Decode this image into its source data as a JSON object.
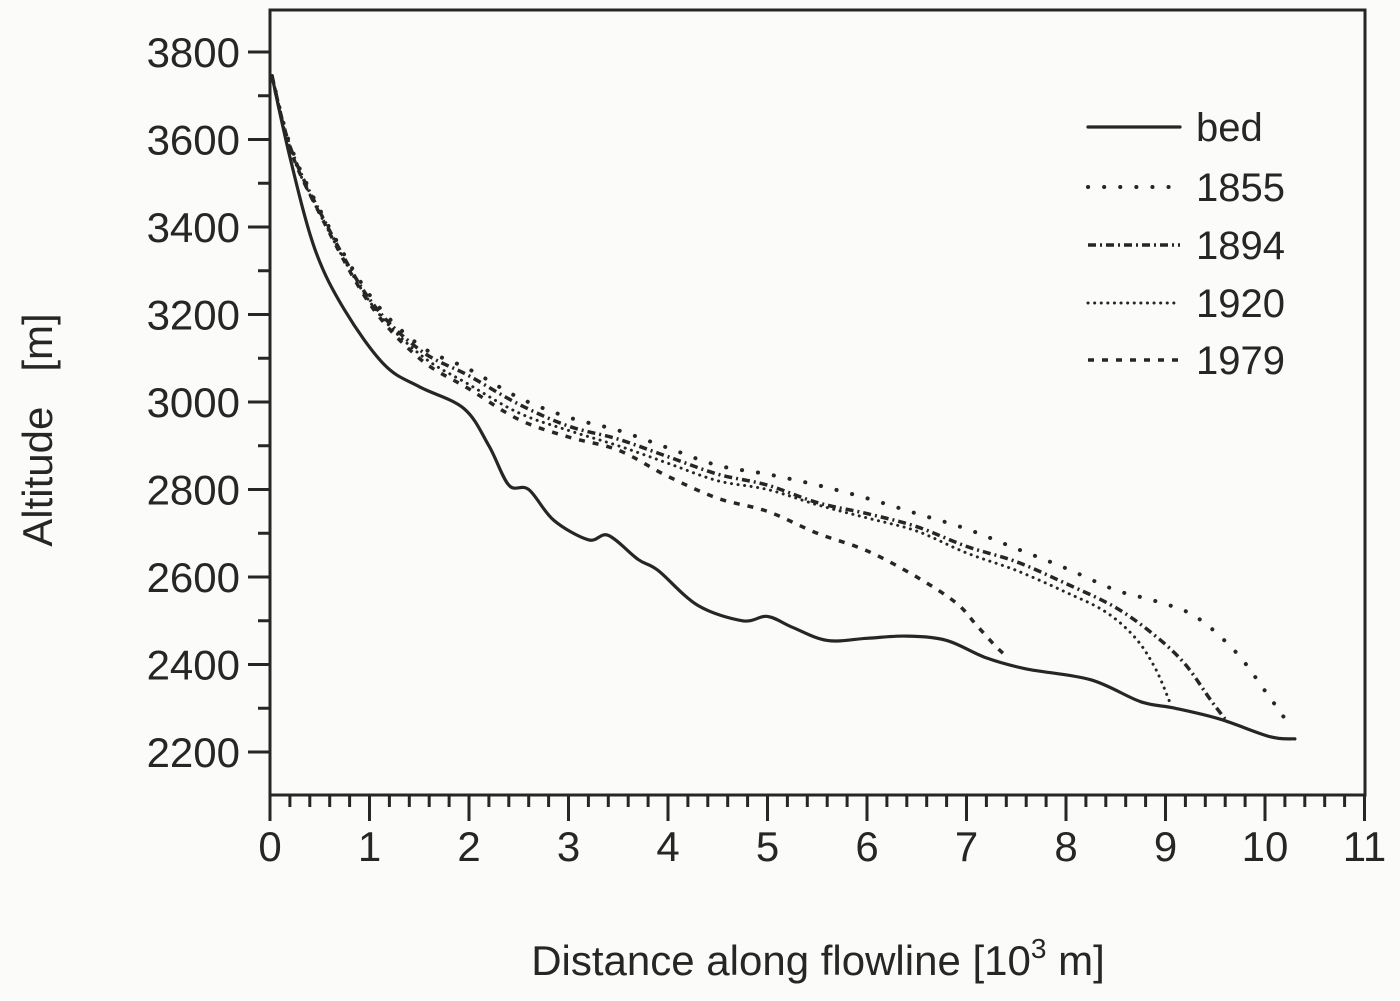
{
  "chart_data": {
    "type": "line",
    "title": "",
    "xlabel": "Distance along flowline [10³ m]",
    "xlabel_parts": {
      "main": "Distance along flowline [10",
      "sup": "3",
      "tail": " m]"
    },
    "ylabel": "Altitude   [m]",
    "xlim": [
      0,
      11
    ],
    "ylim": [
      2100,
      3880
    ],
    "x_ticks": [
      0,
      1,
      2,
      3,
      4,
      5,
      6,
      7,
      8,
      9,
      10,
      11
    ],
    "x_tick_labels": [
      "0",
      "1",
      "2",
      "3",
      "4",
      "5",
      "6",
      "7",
      "8",
      "9",
      "10",
      "11"
    ],
    "x_minor_step": 0.2,
    "y_ticks": [
      2200,
      2400,
      2600,
      2800,
      3000,
      3200,
      3400,
      3600,
      3800
    ],
    "y_tick_labels": [
      "2200",
      "2400",
      "2600",
      "2800",
      "3000",
      "3200",
      "3400",
      "3600",
      "3800"
    ],
    "y_minor_step": 100,
    "grid": false,
    "legend_position": "upper right",
    "series": [
      {
        "name": "bed",
        "style": "solid",
        "x": [
          0.02,
          0.2,
          0.45,
          0.75,
          1.15,
          1.5,
          1.95,
          2.2,
          2.4,
          2.6,
          2.85,
          3.2,
          3.4,
          3.7,
          3.9,
          4.3,
          4.75,
          5.0,
          5.25,
          5.6,
          6.0,
          6.4,
          6.8,
          7.2,
          7.6,
          8.25,
          8.75,
          9.1,
          9.55,
          10.05,
          10.3
        ],
        "values": [
          3745,
          3560,
          3350,
          3210,
          3085,
          3035,
          2985,
          2900,
          2810,
          2800,
          2730,
          2685,
          2695,
          2640,
          2615,
          2535,
          2500,
          2510,
          2485,
          2455,
          2460,
          2465,
          2455,
          2415,
          2390,
          2365,
          2315,
          2300,
          2275,
          2235,
          2230
        ]
      },
      {
        "name": "1855",
        "style": "dotted-sparse",
        "x": [
          0.02,
          0.2,
          0.5,
          1.0,
          1.5,
          2.0,
          2.5,
          3.0,
          3.5,
          4.0,
          4.5,
          5.0,
          5.5,
          6.0,
          6.5,
          7.0,
          7.5,
          8.0,
          8.5,
          8.9,
          9.3,
          9.7,
          10.0,
          10.25
        ],
        "values": [
          3745,
          3590,
          3440,
          3245,
          3130,
          3075,
          3010,
          2965,
          2935,
          2895,
          2855,
          2835,
          2810,
          2780,
          2745,
          2710,
          2665,
          2620,
          2570,
          2545,
          2510,
          2430,
          2340,
          2260
        ]
      },
      {
        "name": "1894",
        "style": "dash-dot",
        "x": [
          0.02,
          0.2,
          0.5,
          1.0,
          1.5,
          2.0,
          2.5,
          3.0,
          3.5,
          4.0,
          4.5,
          5.0,
          5.5,
          6.0,
          6.5,
          7.0,
          7.5,
          8.0,
          8.5,
          8.9,
          9.2,
          9.45,
          9.6
        ],
        "values": [
          3745,
          3585,
          3435,
          3235,
          3120,
          3060,
          2995,
          2945,
          2915,
          2875,
          2835,
          2810,
          2770,
          2745,
          2715,
          2670,
          2635,
          2585,
          2530,
          2465,
          2400,
          2320,
          2275
        ]
      },
      {
        "name": "1920",
        "style": "dotted-dense",
        "x": [
          0.02,
          0.2,
          0.5,
          1.0,
          1.5,
          2.0,
          2.5,
          3.0,
          3.5,
          4.0,
          4.5,
          5.0,
          5.5,
          6.0,
          6.5,
          7.0,
          7.5,
          8.0,
          8.4,
          8.7,
          8.9,
          9.05
        ],
        "values": [
          3745,
          3580,
          3430,
          3230,
          3110,
          3040,
          2975,
          2935,
          2900,
          2860,
          2820,
          2800,
          2765,
          2735,
          2705,
          2655,
          2615,
          2565,
          2520,
          2460,
          2390,
          2310
        ]
      },
      {
        "name": "1979",
        "style": "dashed",
        "x": [
          0.02,
          0.2,
          0.5,
          1.0,
          1.5,
          2.0,
          2.5,
          3.0,
          3.5,
          4.0,
          4.5,
          5.0,
          5.5,
          6.0,
          6.5,
          6.9,
          7.1,
          7.3,
          7.4
        ],
        "values": [
          3745,
          3580,
          3430,
          3225,
          3100,
          3030,
          2960,
          2920,
          2890,
          2830,
          2780,
          2750,
          2700,
          2660,
          2600,
          2540,
          2490,
          2440,
          2420
        ]
      }
    ]
  },
  "legend": {
    "items": [
      {
        "label": "bed",
        "style": "solid"
      },
      {
        "label": "1855",
        "style": "dotted-sparse"
      },
      {
        "label": "1894",
        "style": "dash-dot"
      },
      {
        "label": "1920",
        "style": "dotted-dense"
      },
      {
        "label": "1979",
        "style": "dashed"
      }
    ]
  },
  "colors": {
    "ink": "#262626",
    "background": "#fbfbf9"
  }
}
